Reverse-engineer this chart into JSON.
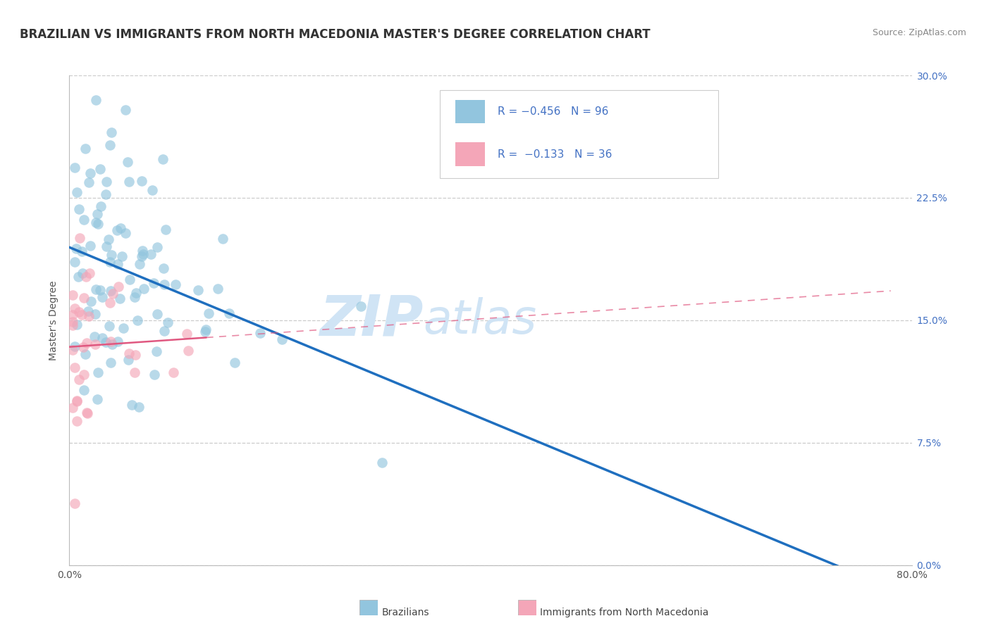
{
  "title": "BRAZILIAN VS IMMIGRANTS FROM NORTH MACEDONIA MASTER'S DEGREE CORRELATION CHART",
  "source": "Source: ZipAtlas.com",
  "ylabel": "Master's Degree",
  "y_ticks": [
    0.0,
    0.075,
    0.15,
    0.225,
    0.3
  ],
  "y_tick_labels_right": [
    "0.0%",
    "7.5%",
    "15.0%",
    "22.5%",
    "30.0%"
  ],
  "xlim": [
    0.0,
    0.8
  ],
  "ylim": [
    0.0,
    0.3
  ],
  "color_blue": "#92C5DE",
  "color_pink": "#F4A6B8",
  "color_blue_line": "#1F6FBF",
  "color_pink_line": "#E05880",
  "watermark_zip": "ZIP",
  "watermark_atlas": "atlas",
  "watermark_color": "#D0E4F5",
  "title_fontsize": 12,
  "axis_label_fontsize": 10,
  "tick_fontsize": 10,
  "legend_fontsize": 11,
  "source_fontsize": 9
}
